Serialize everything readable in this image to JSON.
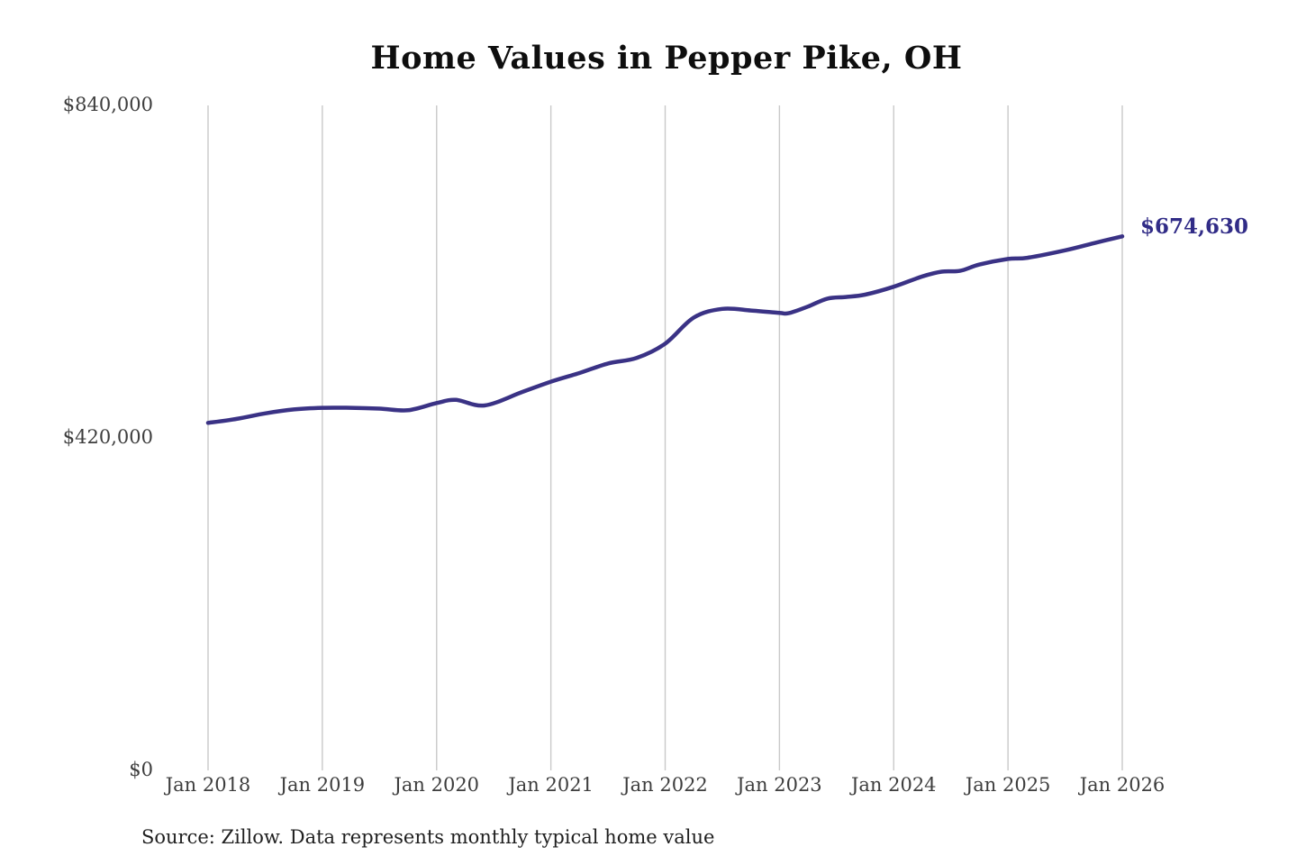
{
  "title": "Home Values in Pepper Pike, OH",
  "source_note": "Source: Zillow. Data represents monthly typical home value",
  "end_label": "$674,630",
  "colors": {
    "line": "#3a3285",
    "end_label_text": "#312c87",
    "grid": "#c9c9c9",
    "axis_text": "#3d3d3d",
    "title_text": "#0e0e0e",
    "background": "#ffffff"
  },
  "chart_data": {
    "type": "line",
    "title": "Home Values in Pepper Pike, OH",
    "series_name": "Monthly typical home value (ZHVI)",
    "xlabel": "",
    "ylabel": "",
    "xlim": [
      2018,
      2026
    ],
    "ylim": [
      0,
      840000
    ],
    "grid": "vertical-only",
    "legend": "none",
    "line_width": 4.5,
    "final_value": 674630,
    "y_ticks": [
      {
        "value": 0,
        "label": "$0"
      },
      {
        "value": 420000,
        "label": "$420,000"
      },
      {
        "value": 840000,
        "label": "$840,000"
      }
    ],
    "x_ticks": [
      {
        "x": 2018,
        "label": "Jan 2018"
      },
      {
        "x": 2019,
        "label": "Jan 2019"
      },
      {
        "x": 2020,
        "label": "Jan 2020"
      },
      {
        "x": 2021,
        "label": "Jan 2021"
      },
      {
        "x": 2022,
        "label": "Jan 2022"
      },
      {
        "x": 2023,
        "label": "Jan 2023"
      },
      {
        "x": 2024,
        "label": "Jan 2024"
      },
      {
        "x": 2025,
        "label": "Jan 2025"
      },
      {
        "x": 2026,
        "label": "Jan 2026"
      }
    ],
    "points": [
      {
        "date": "Jan 2018",
        "x": 2018.0,
        "value": 439000
      },
      {
        "date": "Apr 2018",
        "x": 2018.25,
        "value": 444000
      },
      {
        "date": "Jul 2018",
        "x": 2018.5,
        "value": 451000
      },
      {
        "date": "Oct 2018",
        "x": 2018.75,
        "value": 456000
      },
      {
        "date": "Jan 2019",
        "x": 2019.0,
        "value": 458000
      },
      {
        "date": "Apr 2019",
        "x": 2019.25,
        "value": 458000
      },
      {
        "date": "Jul 2019",
        "x": 2019.5,
        "value": 457000
      },
      {
        "date": "Oct 2019",
        "x": 2019.75,
        "value": 455000
      },
      {
        "date": "Jan 2020",
        "x": 2020.0,
        "value": 464000
      },
      {
        "date": "Mar 2020",
        "x": 2020.17,
        "value": 468000
      },
      {
        "date": "Jun 2020",
        "x": 2020.42,
        "value": 461000
      },
      {
        "date": "Oct 2020",
        "x": 2020.75,
        "value": 478000
      },
      {
        "date": "Jan 2021",
        "x": 2021.0,
        "value": 491000
      },
      {
        "date": "Apr 2021",
        "x": 2021.25,
        "value": 502000
      },
      {
        "date": "Jul 2021",
        "x": 2021.5,
        "value": 514000
      },
      {
        "date": "Oct 2021",
        "x": 2021.75,
        "value": 521000
      },
      {
        "date": "Jan 2022",
        "x": 2022.0,
        "value": 539000
      },
      {
        "date": "Apr 2022",
        "x": 2022.25,
        "value": 572000
      },
      {
        "date": "Jul 2022",
        "x": 2022.5,
        "value": 583000
      },
      {
        "date": "Oct 2022",
        "x": 2022.75,
        "value": 581000
      },
      {
        "date": "Jan 2023",
        "x": 2023.0,
        "value": 578000
      },
      {
        "date": "Feb 2023",
        "x": 2023.08,
        "value": 577500
      },
      {
        "date": "Apr 2023",
        "x": 2023.25,
        "value": 586000
      },
      {
        "date": "Jun 2023",
        "x": 2023.42,
        "value": 596000
      },
      {
        "date": "Aug 2023",
        "x": 2023.58,
        "value": 598000
      },
      {
        "date": "Oct 2023",
        "x": 2023.75,
        "value": 601000
      },
      {
        "date": "Jan 2024",
        "x": 2024.0,
        "value": 611000
      },
      {
        "date": "Apr 2024",
        "x": 2024.25,
        "value": 624000
      },
      {
        "date": "Jun 2024",
        "x": 2024.42,
        "value": 630000
      },
      {
        "date": "Aug 2024",
        "x": 2024.58,
        "value": 631000
      },
      {
        "date": "Oct 2024",
        "x": 2024.75,
        "value": 639000
      },
      {
        "date": "Jan 2025",
        "x": 2025.0,
        "value": 646000
      },
      {
        "date": "Mar 2025",
        "x": 2025.17,
        "value": 647500
      },
      {
        "date": "Jul 2025",
        "x": 2025.5,
        "value": 657000
      },
      {
        "date": "Oct 2025",
        "x": 2025.75,
        "value": 666000
      },
      {
        "date": "Jan 2026",
        "x": 2026.0,
        "value": 674630
      }
    ]
  }
}
